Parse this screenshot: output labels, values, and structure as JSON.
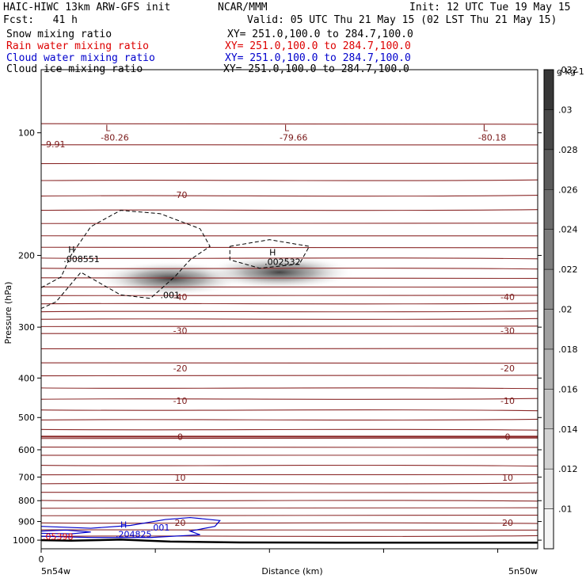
{
  "header": {
    "model": "HAIC-HIWC 13km ARW-GFS init",
    "center": "NCAR/MMM",
    "init": "Init: 12 UTC Tue 19 May 15",
    "fcst": "Fcst:   41 h",
    "valid": "Valid: 05 UTC Thu 21 May 15 (02 LST Thu 21 May 15)"
  },
  "legend": [
    {
      "label": "Snow mixing ratio",
      "xy": "XY= 251.0,100.0 to 284.7,100.0",
      "color": "#000000"
    },
    {
      "label": "Rain water mixing ratio",
      "xy": "XY= 251.0,100.0 to 284.7,100.0",
      "color": "#dd0000"
    },
    {
      "label": "Cloud water mixing ratio",
      "xy": "XY= 251.0,100.0 to 284.7,100.0",
      "color": "#0000cc"
    },
    {
      "label": "Cloud ice mixing ratio",
      "xy": "XY= 251.0,100.0 to 284.7,100.0",
      "color": "#000000"
    }
  ],
  "chart_data": {
    "type": "contour-cross-section",
    "xlabel": "Distance (km)",
    "ylabel": "Pressure (hPa)",
    "x_start_label": "5n54w",
    "x_end_label": "5n50w",
    "x_tick_zero": "0",
    "ylim": [
      1050,
      70
    ],
    "y_scale": "log",
    "y_ticks": [
      100,
      200,
      300,
      400,
      500,
      600,
      700,
      800,
      900,
      1000
    ],
    "temperature_isotherms_C": [
      -80,
      -70,
      -60,
      -50,
      -40,
      -30,
      -20,
      -10,
      0,
      10,
      20
    ],
    "temperature_labels": [
      {
        "text": "-70",
        "p": 142,
        "side": "left"
      },
      {
        "text": "-40",
        "p": 253,
        "side": "left"
      },
      {
        "text": "-40",
        "p": 253,
        "side": "right"
      },
      {
        "text": "-30",
        "p": 306,
        "side": "left"
      },
      {
        "text": "-30",
        "p": 306,
        "side": "right"
      },
      {
        "text": "-20",
        "p": 378,
        "side": "left"
      },
      {
        "text": "-20",
        "p": 378,
        "side": "right"
      },
      {
        "text": "-10",
        "p": 455,
        "side": "left"
      },
      {
        "text": "-10",
        "p": 455,
        "side": "right"
      },
      {
        "text": "0",
        "p": 557,
        "side": "left"
      },
      {
        "text": "0",
        "p": 557,
        "side": "right"
      },
      {
        "text": "10",
        "p": 702,
        "side": "left"
      },
      {
        "text": "10",
        "p": 702,
        "side": "right"
      },
      {
        "text": "20",
        "p": 905,
        "side": "left"
      },
      {
        "text": "20",
        "p": 905,
        "side": "right"
      }
    ],
    "extrema": [
      {
        "kind": "L",
        "value": "-80.26",
        "x": 0.12,
        "p": 103,
        "color": "#7a1a1a"
      },
      {
        "kind": "L",
        "value": "-79.66",
        "x": 0.48,
        "p": 103,
        "color": "#7a1a1a"
      },
      {
        "kind": "L",
        "value": "-80.18",
        "x": 0.88,
        "p": 103,
        "color": "#7a1a1a"
      },
      {
        "kind": "",
        "value": "-9.91",
        "x": 0.0,
        "p": 107,
        "color": "#7a1a1a"
      },
      {
        "kind": "H",
        "value": ".008551",
        "x": 0.045,
        "p": 205,
        "color": "#000000"
      },
      {
        "kind": "H",
        "value": ".002532",
        "x": 0.45,
        "p": 208,
        "color": "#000000"
      },
      {
        "kind": "H",
        "value": ".204825",
        "x": 0.15,
        "p": 970,
        "color": "#0000cc"
      },
      {
        "kind": "",
        "value": ".05398",
        "x": 0.0,
        "p": 983,
        "color": "#dd0000"
      }
    ],
    "contour_value_labels": [
      {
        "text": ".001",
        "x": 0.24,
        "p": 250,
        "color": "#000000"
      },
      {
        "text": ".001",
        "x": 0.22,
        "p": 930,
        "color": "#0000cc"
      }
    ],
    "colorbar": {
      "unit": "g kg-1",
      "levels": [
        0.01,
        0.012,
        0.014,
        0.016,
        0.018,
        0.02,
        0.022,
        0.024,
        0.026,
        0.028,
        0.03,
        0.032
      ],
      "labels": [
        ".01",
        ".012",
        ".014",
        ".016",
        ".018",
        ".02",
        ".022",
        ".024",
        ".026",
        ".028",
        ".03",
        ".032"
      ]
    },
    "snow_maxima": [
      {
        "x": 0.26,
        "p": 228,
        "value": 0.032
      },
      {
        "x": 0.48,
        "p": 220,
        "value": 0.032
      }
    ]
  }
}
